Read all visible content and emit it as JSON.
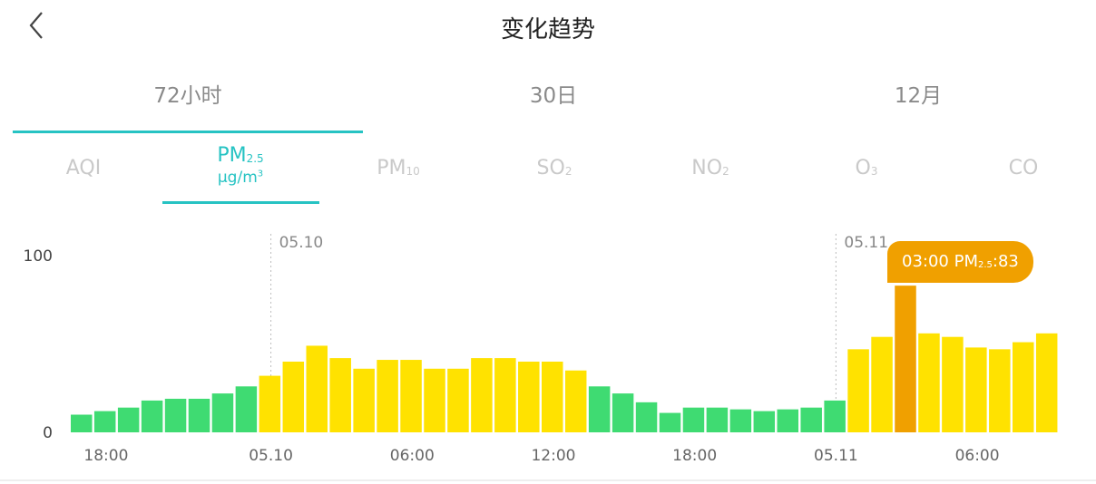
{
  "header": {
    "title": "变化趋势"
  },
  "range_tabs": [
    {
      "label": "72小时",
      "active": true
    },
    {
      "label": "30日",
      "active": false
    },
    {
      "label": "12月",
      "active": false
    }
  ],
  "pollutants": [
    {
      "main": "AQI",
      "sub": "",
      "unit": "",
      "active": false
    },
    {
      "main": "PM",
      "sub": "2.5",
      "unit": "μg/m",
      "unit_sup": "3",
      "active": true
    },
    {
      "main": "PM",
      "sub": "10",
      "unit": "",
      "active": false
    },
    {
      "main": "SO",
      "sub": "2",
      "unit": "",
      "active": false
    },
    {
      "main": "NO",
      "sub": "2",
      "unit": "",
      "active": false
    },
    {
      "main": "O",
      "sub": "3",
      "unit": "",
      "active": false
    },
    {
      "main": "CO",
      "sub": "",
      "unit": "",
      "active": false
    }
  ],
  "tooltip": {
    "time": "03:00",
    "label": "PM",
    "label_sub": "2.5",
    "sep": ":",
    "value": "83"
  },
  "chart_data": {
    "type": "bar",
    "values": [
      10,
      12,
      14,
      18,
      19,
      19,
      22,
      26,
      32,
      40,
      49,
      42,
      36,
      41,
      41,
      36,
      36,
      42,
      42,
      40,
      40,
      35,
      26,
      22,
      17,
      11,
      14,
      14,
      13,
      12,
      13,
      14,
      18,
      47,
      54,
      83,
      56,
      54,
      48,
      47,
      51,
      56
    ],
    "colors": [
      "#3fdb72",
      "#3fdb72",
      "#3fdb72",
      "#3fdb72",
      "#3fdb72",
      "#3fdb72",
      "#3fdb72",
      "#3fdb72",
      "#ffe200",
      "#ffe200",
      "#ffe200",
      "#ffe200",
      "#ffe200",
      "#ffe200",
      "#ffe200",
      "#ffe200",
      "#ffe200",
      "#ffe200",
      "#ffe200",
      "#ffe200",
      "#ffe200",
      "#ffe200",
      "#3fdb72",
      "#3fdb72",
      "#3fdb72",
      "#3fdb72",
      "#3fdb72",
      "#3fdb72",
      "#3fdb72",
      "#3fdb72",
      "#3fdb72",
      "#3fdb72",
      "#3fdb72",
      "#ffe200",
      "#ffe200",
      "#f0a000",
      "#ffe200",
      "#ffe200",
      "#ffe200",
      "#ffe200",
      "#ffe200",
      "#ffe200"
    ],
    "highlight_index": 35,
    "x_tick_labels": [
      "18:00",
      "05.10",
      "06:00",
      "12:00",
      "18:00",
      "05.11",
      "06:00"
    ],
    "x_tick_positions": [
      1.5,
      8.5,
      14.5,
      20.5,
      26.5,
      32.5,
      38.5
    ],
    "y_ticks": [
      0,
      100
    ],
    "ylim": [
      0,
      100
    ],
    "day_markers": [
      {
        "label": "05.10",
        "position": 8.5
      },
      {
        "label": "05.11",
        "position": 32.5
      }
    ],
    "grid": false
  }
}
